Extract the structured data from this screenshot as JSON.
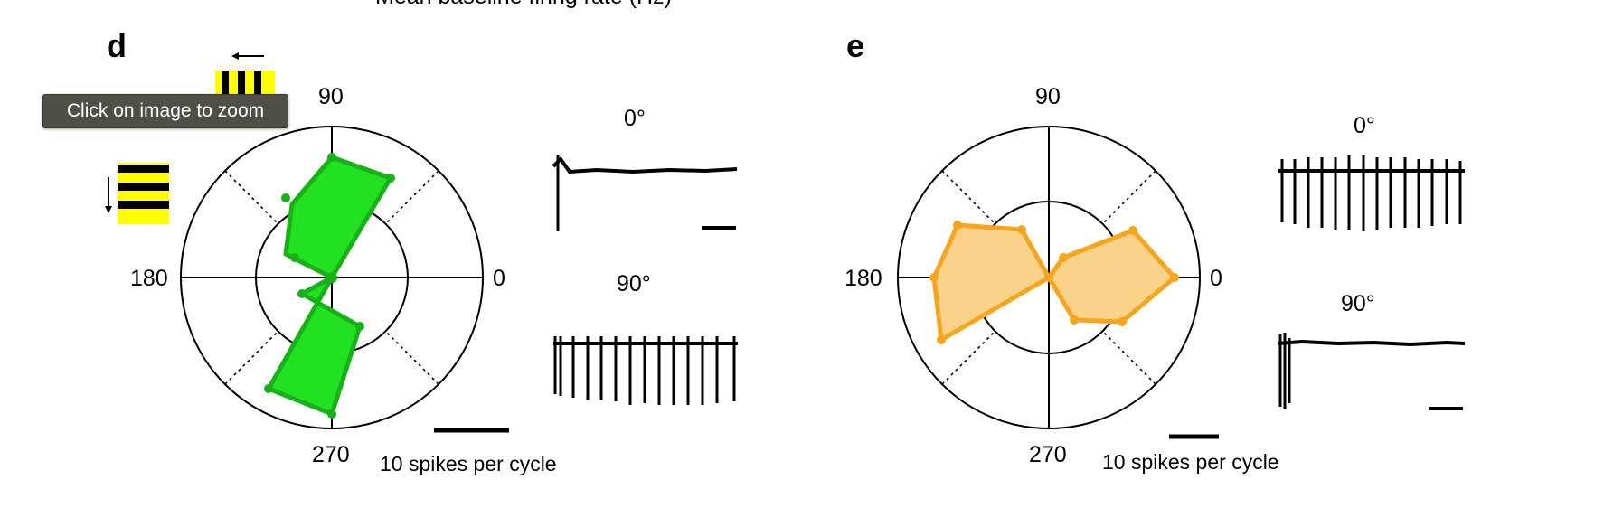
{
  "header": {
    "cut_title": "Mean baseline firing rate (Hz)"
  },
  "tooltip": {
    "text": "Click on image to zoom"
  },
  "colors": {
    "panel_d_fill": "#22e022",
    "panel_d_stroke": "#17b217",
    "panel_e_fill": "#fbd28a",
    "panel_e_stroke": "#f5a51e"
  },
  "panels": [
    {
      "letter": "d",
      "axis_labels": {
        "top": "90",
        "left": "180",
        "right": "0",
        "bottom": "270"
      },
      "scale_label": "10 spikes per cycle",
      "trace_labels": [
        "0°",
        "90°"
      ]
    },
    {
      "letter": "e",
      "axis_labels": {
        "top": "90",
        "left": "180",
        "right": "0",
        "bottom": "270"
      },
      "scale_label": "10 spikes per cycle",
      "trace_labels": [
        "0°",
        "90°"
      ]
    }
  ]
}
